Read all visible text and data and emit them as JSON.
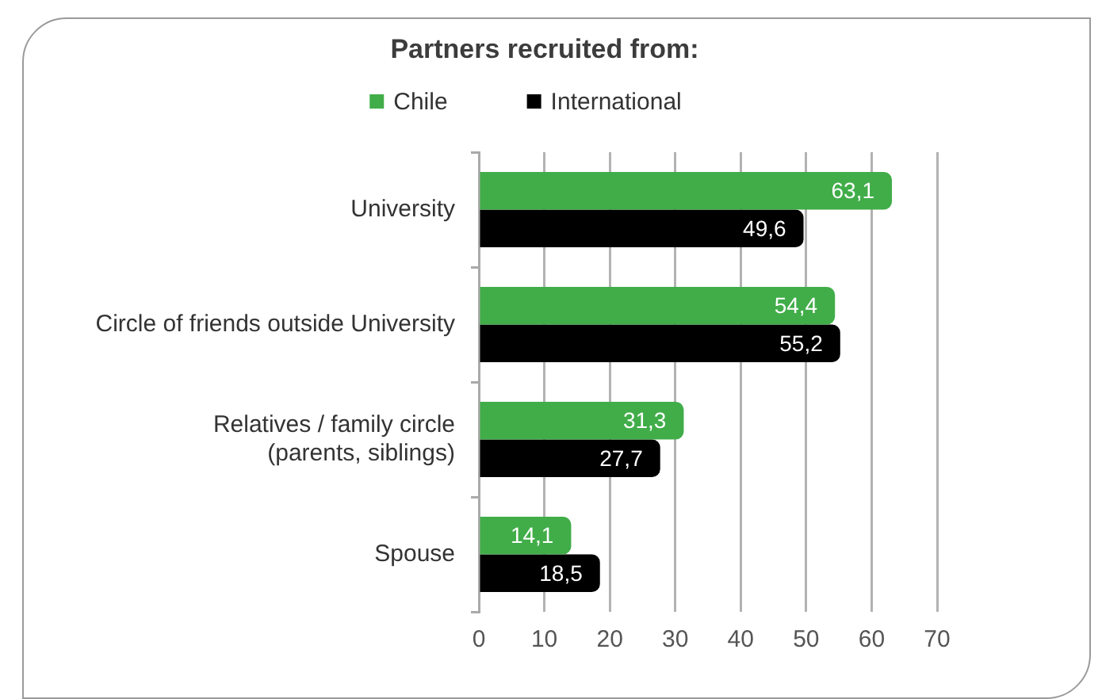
{
  "chart_data": {
    "type": "bar",
    "orientation": "horizontal",
    "title": "Partners recruited from:",
    "categories": [
      "University",
      "Circle of friends outside University",
      "Relatives / family circle\n(parents, siblings)",
      "Spouse"
    ],
    "series": [
      {
        "name": "Chile",
        "color": "#41ad49",
        "values": [
          63.1,
          54.4,
          31.3,
          14.1
        ],
        "value_labels": [
          "63,1",
          "54,4",
          "31,3",
          "14,1"
        ]
      },
      {
        "name": "International",
        "color": "#000000",
        "values": [
          49.6,
          55.2,
          27.7,
          18.5
        ],
        "value_labels": [
          "49,6",
          "55,2",
          "27,7",
          "18,5"
        ]
      }
    ],
    "xlim": [
      0,
      70
    ],
    "xticks": [
      0,
      10,
      20,
      30,
      40,
      50,
      60,
      70
    ],
    "grid": "x",
    "legend": "top"
  }
}
